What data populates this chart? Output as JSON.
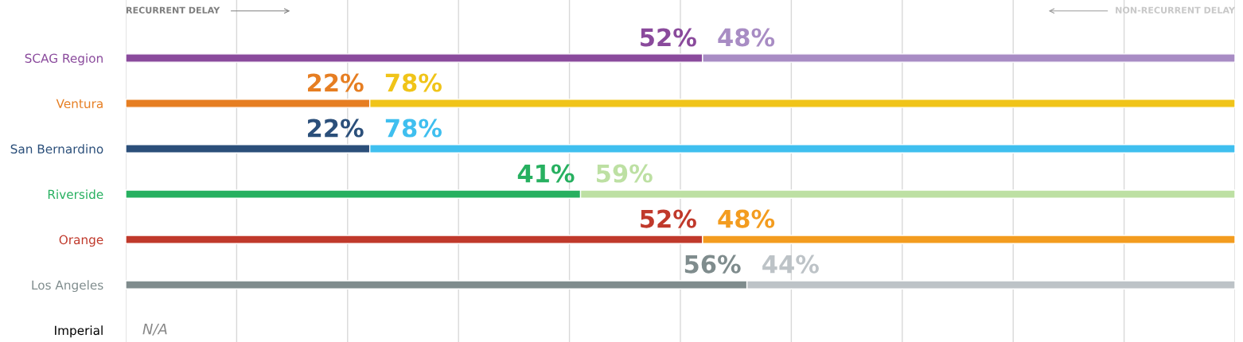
{
  "chart_data": {
    "type": "bar",
    "orientation": "horizontal",
    "stacked": true,
    "categories": [
      "SCAG Region",
      "Ventura",
      "San Bernardino",
      "Riverside",
      "Orange",
      "Los Angeles",
      "Imperial"
    ],
    "series": [
      {
        "name": "RECURRENT DELAY",
        "values": [
          52,
          22,
          22,
          41,
          52,
          56,
          null
        ],
        "colors": [
          "#8a4a9c",
          "#e67e22",
          "#2b4f7a",
          "#27b060",
          "#c0392b",
          "#7f8c8d",
          "#000000"
        ],
        "value_labels": [
          "52%",
          "22%",
          "22%",
          "41%",
          "52%",
          "56%",
          "N/A"
        ]
      },
      {
        "name": "NON-RECURRENT DELAY",
        "values": [
          48,
          78,
          78,
          59,
          48,
          44,
          null
        ],
        "colors": [
          "#a88cc4",
          "#f0c419",
          "#3fbfef",
          "#bde0a3",
          "#f39c1f",
          "#bdc3c7",
          "#bdc3c7"
        ],
        "value_labels": [
          "48%",
          "78%",
          "78%",
          "59%",
          "48%",
          "44%",
          null
        ]
      }
    ],
    "xlim": [
      0,
      100
    ],
    "xticks": [
      {
        "value": 0,
        "label": null
      },
      {
        "value": 10,
        "label": null
      },
      {
        "value": 20,
        "label": null
      },
      {
        "value": 30,
        "label": null
      },
      {
        "value": 40,
        "label": null
      },
      {
        "value": 50,
        "label": null
      },
      {
        "value": 60,
        "label": null
      },
      {
        "value": 70,
        "label": null
      },
      {
        "value": 80,
        "label": null
      },
      {
        "value": 90,
        "label": null
      },
      {
        "value": 100,
        "label": null
      }
    ],
    "grid": "x",
    "legend": "top"
  }
}
